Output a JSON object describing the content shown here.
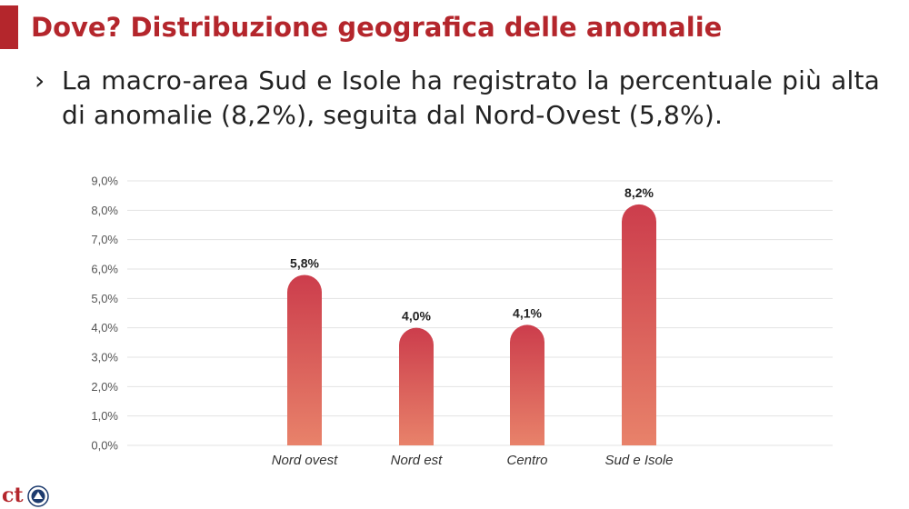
{
  "slide": {
    "title": "Dove? Distribuzione geografica delle anomalie",
    "bullet_mark": "›",
    "bullet_text": "La macro-area Sud e Isole ha registrato la percentuale più alta di anomalie (8,2%), seguita dal Nord-Ovest (5,8%).",
    "logo_text": "ct",
    "accent_color": "#b4262c"
  },
  "chart_data": {
    "type": "bar",
    "categories": [
      "Nord ovest",
      "Nord est",
      "Centro",
      "Sud e Isole"
    ],
    "values": [
      5.8,
      4.0,
      4.1,
      8.2
    ],
    "value_labels": [
      "5,8%",
      "4,0%",
      "4,1%",
      "8,2%"
    ],
    "ylim": [
      0,
      9
    ],
    "yticks": [
      "0,0%",
      "1,0%",
      "2,0%",
      "3,0%",
      "4,0%",
      "5,0%",
      "6,0%",
      "7,0%",
      "8,0%",
      "9,0%"
    ],
    "grid": true,
    "legend": "none",
    "bar_gradient": [
      "#cc3d4c",
      "#e8826a"
    ]
  }
}
